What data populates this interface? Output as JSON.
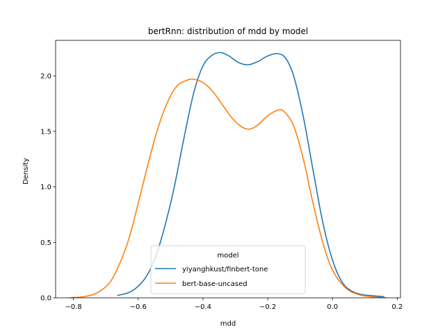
{
  "chart_data": {
    "type": "line",
    "title": "bertRnn: distribution of mdd by model",
    "xlabel": "mdd",
    "ylabel": "Density",
    "xlim": [
      -0.855,
      0.21
    ],
    "ylim": [
      0.0,
      2.32
    ],
    "xticks": [
      -0.8,
      -0.6,
      -0.4,
      -0.2,
      0.0,
      0.2
    ],
    "xtick_labels": [
      "−0.8",
      "−0.6",
      "−0.4",
      "−0.2",
      "0.0",
      "0.2"
    ],
    "yticks": [
      0.0,
      0.5,
      1.0,
      1.5,
      2.0
    ],
    "ytick_labels": [
      "0.0",
      "0.5",
      "1.0",
      "1.5",
      "2.0"
    ],
    "grid": false,
    "legend": {
      "title": "model",
      "placement": "lower-center"
    },
    "series": [
      {
        "name": "yiyanghkust/finbert-tone",
        "color": "#1f77b4",
        "x": [
          -0.665,
          -0.62,
          -0.58,
          -0.55,
          -0.52,
          -0.49,
          -0.46,
          -0.43,
          -0.4,
          -0.37,
          -0.345,
          -0.32,
          -0.29,
          -0.26,
          -0.23,
          -0.2,
          -0.17,
          -0.145,
          -0.12,
          -0.09,
          -0.06,
          -0.03,
          0.0,
          0.03,
          0.06,
          0.09,
          0.12,
          0.16
        ],
        "y": [
          0.02,
          0.06,
          0.17,
          0.34,
          0.62,
          0.98,
          1.42,
          1.83,
          2.09,
          2.19,
          2.21,
          2.18,
          2.12,
          2.1,
          2.13,
          2.18,
          2.2,
          2.16,
          2.0,
          1.63,
          1.15,
          0.68,
          0.34,
          0.14,
          0.06,
          0.03,
          0.02,
          0.01
        ]
      },
      {
        "name": "bert-base-uncased",
        "color": "#ff7f0e",
        "x": [
          -0.81,
          -0.77,
          -0.73,
          -0.69,
          -0.66,
          -0.63,
          -0.6,
          -0.57,
          -0.54,
          -0.51,
          -0.48,
          -0.45,
          -0.43,
          -0.4,
          -0.37,
          -0.34,
          -0.31,
          -0.28,
          -0.255,
          -0.23,
          -0.2,
          -0.17,
          -0.15,
          -0.12,
          -0.09,
          -0.06,
          -0.03,
          0.0,
          0.04,
          0.08,
          0.12,
          0.165
        ],
        "y": [
          0.0,
          0.01,
          0.04,
          0.13,
          0.29,
          0.52,
          0.85,
          1.2,
          1.52,
          1.76,
          1.91,
          1.96,
          1.97,
          1.94,
          1.86,
          1.74,
          1.62,
          1.54,
          1.52,
          1.56,
          1.64,
          1.69,
          1.68,
          1.55,
          1.25,
          0.85,
          0.5,
          0.25,
          0.09,
          0.03,
          0.01,
          0.0
        ]
      }
    ]
  }
}
